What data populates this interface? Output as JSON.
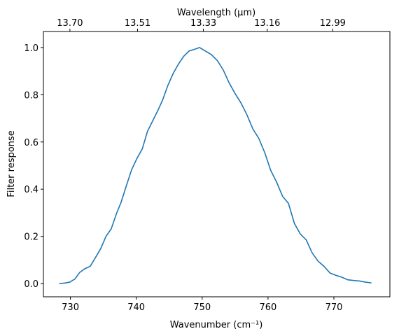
{
  "chart_data": {
    "type": "line",
    "xlabel": "Wavenumber (cm⁻¹)",
    "ylabel": "Filter response",
    "x2label": "Wavelength (μm)",
    "xlim": [
      725.9,
      778.5
    ],
    "ylim": [
      -0.056,
      1.068
    ],
    "xticks": [
      730,
      740,
      750,
      760,
      770
    ],
    "yticks": [
      {
        "value": 0,
        "label": "0.0"
      },
      {
        "value": 0.2,
        "label": "0.2"
      },
      {
        "value": 0.4,
        "label": "0.4"
      },
      {
        "value": 0.6,
        "label": "0.6"
      },
      {
        "value": 0.8,
        "label": "0.8"
      },
      {
        "value": 1,
        "label": "1.0"
      }
    ],
    "x2_scale": "reciprocal",
    "x2ticks": [
      {
        "value": 13.7,
        "label": "13.70"
      },
      {
        "value": 13.51,
        "label": "13.51"
      },
      {
        "value": 13.33,
        "label": "13.33"
      },
      {
        "value": 13.16,
        "label": "13.16"
      },
      {
        "value": 12.99,
        "label": "12.99"
      }
    ],
    "grid": false,
    "series": [
      {
        "color": "#1f77b4",
        "x": [
          728.3,
          729.1,
          729.9,
          730.7,
          731.4,
          732.2,
          733.0,
          733.8,
          734.6,
          735.4,
          736.2,
          737.0,
          737.7,
          738.5,
          739.3,
          740.1,
          740.9,
          741.7,
          742.5,
          743.3,
          744.0,
          744.8,
          745.6,
          746.4,
          747.2,
          748.0,
          748.8,
          749.6,
          750.5,
          751.4,
          752.3,
          753.2,
          754.1,
          755.0,
          755.9,
          756.8,
          757.7,
          758.6,
          759.5,
          760.4,
          761.3,
          762.2,
          763.1,
          764.0,
          764.9,
          765.8,
          766.7,
          767.6,
          768.5,
          769.4,
          770.3,
          771.2,
          772.1,
          773.0,
          773.9,
          774.8,
          775.7
        ],
        "values": [
          0.0,
          0.002,
          0.006,
          0.02,
          0.047,
          0.063,
          0.073,
          0.11,
          0.148,
          0.2,
          0.232,
          0.297,
          0.345,
          0.415,
          0.483,
          0.53,
          0.57,
          0.645,
          0.69,
          0.735,
          0.778,
          0.84,
          0.89,
          0.93,
          0.963,
          0.985,
          0.992,
          1.0,
          0.985,
          0.97,
          0.945,
          0.905,
          0.85,
          0.805,
          0.765,
          0.715,
          0.655,
          0.615,
          0.555,
          0.48,
          0.43,
          0.37,
          0.34,
          0.255,
          0.21,
          0.185,
          0.13,
          0.095,
          0.073,
          0.045,
          0.035,
          0.027,
          0.016,
          0.013,
          0.011,
          0.006,
          0.003
        ]
      }
    ]
  }
}
